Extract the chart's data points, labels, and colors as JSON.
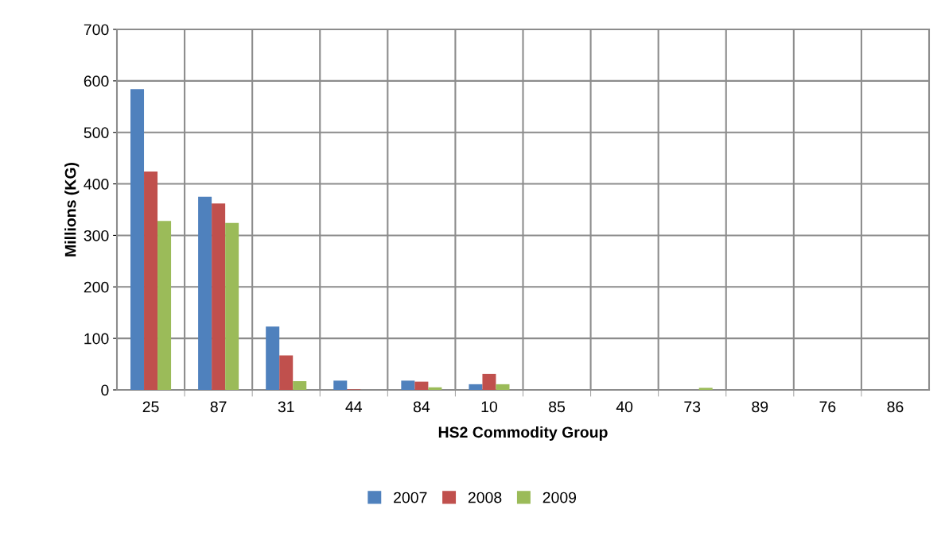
{
  "chart_data": {
    "type": "bar",
    "xlabel": "HS2 Commodity Group",
    "ylabel": "Millions (KG)",
    "categories": [
      "25",
      "87",
      "31",
      "44",
      "84",
      "10",
      "85",
      "40",
      "73",
      "89",
      "76",
      "86"
    ],
    "series": [
      {
        "name": "2007",
        "color": "#4f81bd",
        "values": [
          584,
          375,
          123,
          18,
          18,
          11,
          0,
          0,
          0,
          0,
          0,
          0
        ]
      },
      {
        "name": "2008",
        "color": "#c0504d",
        "values": [
          424,
          362,
          67,
          1,
          16,
          31,
          0,
          0,
          0,
          0,
          0,
          0
        ]
      },
      {
        "name": "2009",
        "color": "#9bbb59",
        "values": [
          328,
          324,
          17,
          0,
          5,
          11,
          0,
          0,
          4,
          0,
          0,
          0
        ]
      }
    ],
    "ylim": [
      0,
      700
    ],
    "yticks": [
      0,
      100,
      200,
      300,
      400,
      500,
      600,
      700
    ],
    "grid": true,
    "legend": "bottom"
  }
}
